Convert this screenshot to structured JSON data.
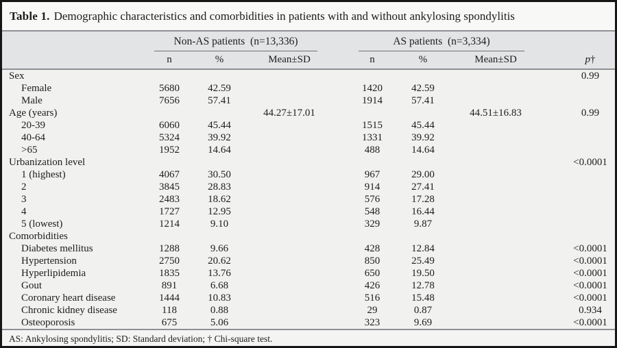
{
  "title": {
    "label": "Table 1.",
    "text": "Demographic characteristics and comorbidities in patients with and without ankylosing spondylitis"
  },
  "header": {
    "groups": [
      {
        "label": "Non-AS patients  (n=13,336)"
      },
      {
        "label": "AS patients  (n=3,334)"
      }
    ],
    "subcolumns": [
      "n",
      "%",
      "Mean±SD"
    ],
    "p_label": "p",
    "p_dagger": "†"
  },
  "rows": [
    {
      "label": "Sex",
      "indent": 0,
      "n1": "",
      "pct1": "",
      "mean1": "",
      "n2": "",
      "pct2": "",
      "mean2": "",
      "p": "0.99"
    },
    {
      "label": "Female",
      "indent": 1,
      "n1": "5680",
      "pct1": "42.59",
      "mean1": "",
      "n2": "1420",
      "pct2": "42.59",
      "mean2": "",
      "p": ""
    },
    {
      "label": "Male",
      "indent": 1,
      "n1": "7656",
      "pct1": "57.41",
      "mean1": "",
      "n2": "1914",
      "pct2": "57.41",
      "mean2": "",
      "p": ""
    },
    {
      "label": "Age (years)",
      "indent": 0,
      "n1": "",
      "pct1": "",
      "mean1": "44.27±17.01",
      "n2": "",
      "pct2": "",
      "mean2": "44.51±16.83",
      "p": "0.99"
    },
    {
      "label": "20-39",
      "indent": 1,
      "n1": "6060",
      "pct1": "45.44",
      "mean1": "",
      "n2": "1515",
      "pct2": "45.44",
      "mean2": "",
      "p": ""
    },
    {
      "label": "40-64",
      "indent": 1,
      "n1": "5324",
      "pct1": "39.92",
      "mean1": "",
      "n2": "1331",
      "pct2": "39.92",
      "mean2": "",
      "p": ""
    },
    {
      "label": ">65",
      "indent": 1,
      "n1": "1952",
      "pct1": "14.64",
      "mean1": "",
      "n2": "488",
      "pct2": "14.64",
      "mean2": "",
      "p": ""
    },
    {
      "label": "Urbanization level",
      "indent": 0,
      "n1": "",
      "pct1": "",
      "mean1": "",
      "n2": "",
      "pct2": "",
      "mean2": "",
      "p": "<0.0001"
    },
    {
      "label": "1 (highest)",
      "indent": 1,
      "n1": "4067",
      "pct1": "30.50",
      "mean1": "",
      "n2": "967",
      "pct2": "29.00",
      "mean2": "",
      "p": ""
    },
    {
      "label": "2",
      "indent": 1,
      "n1": "3845",
      "pct1": "28.83",
      "mean1": "",
      "n2": "914",
      "pct2": "27.41",
      "mean2": "",
      "p": ""
    },
    {
      "label": "3",
      "indent": 1,
      "n1": "2483",
      "pct1": "18.62",
      "mean1": "",
      "n2": "576",
      "pct2": "17.28",
      "mean2": "",
      "p": ""
    },
    {
      "label": "4",
      "indent": 1,
      "n1": "1727",
      "pct1": "12.95",
      "mean1": "",
      "n2": "548",
      "pct2": "16.44",
      "mean2": "",
      "p": ""
    },
    {
      "label": "5 (lowest)",
      "indent": 1,
      "n1": "1214",
      "pct1": "9.10",
      "mean1": "",
      "n2": "329",
      "pct2": "9.87",
      "mean2": "",
      "p": ""
    },
    {
      "label": "Comorbidities",
      "indent": 0,
      "n1": "",
      "pct1": "",
      "mean1": "",
      "n2": "",
      "pct2": "",
      "mean2": "",
      "p": ""
    },
    {
      "label": "Diabetes mellitus",
      "indent": 1,
      "n1": "1288",
      "pct1": "9.66",
      "mean1": "",
      "n2": "428",
      "pct2": "12.84",
      "mean2": "",
      "p": "<0.0001"
    },
    {
      "label": "Hypertension",
      "indent": 1,
      "n1": "2750",
      "pct1": "20.62",
      "mean1": "",
      "n2": "850",
      "pct2": "25.49",
      "mean2": "",
      "p": "<0.0001"
    },
    {
      "label": "Hyperlipidemia",
      "indent": 1,
      "n1": "1835",
      "pct1": "13.76",
      "mean1": "",
      "n2": "650",
      "pct2": "19.50",
      "mean2": "",
      "p": "<0.0001"
    },
    {
      "label": "Gout",
      "indent": 1,
      "n1": "891",
      "pct1": "6.68",
      "mean1": "",
      "n2": "426",
      "pct2": "12.78",
      "mean2": "",
      "p": "<0.0001"
    },
    {
      "label": "Coronary heart disease",
      "indent": 1,
      "n1": "1444",
      "pct1": "10.83",
      "mean1": "",
      "n2": "516",
      "pct2": "15.48",
      "mean2": "",
      "p": "<0.0001"
    },
    {
      "label": "Chronic kidney disease",
      "indent": 1,
      "n1": "118",
      "pct1": "0.88",
      "mean1": "",
      "n2": "29",
      "pct2": "0.87",
      "mean2": "",
      "p": "0.934"
    },
    {
      "label": "Osteoporosis",
      "indent": 1,
      "n1": "675",
      "pct1": "5.06",
      "mean1": "",
      "n2": "323",
      "pct2": "9.69",
      "mean2": "",
      "p": "<0.0001"
    }
  ],
  "footnote": "AS: Ankylosing spondylitis; SD: Standard deviation; † Chi-square test.",
  "colors": {
    "frame": "#161616",
    "header_band": "#e3e4e6",
    "body_band": "#f1f1f0",
    "rule": "#8f9094"
  }
}
